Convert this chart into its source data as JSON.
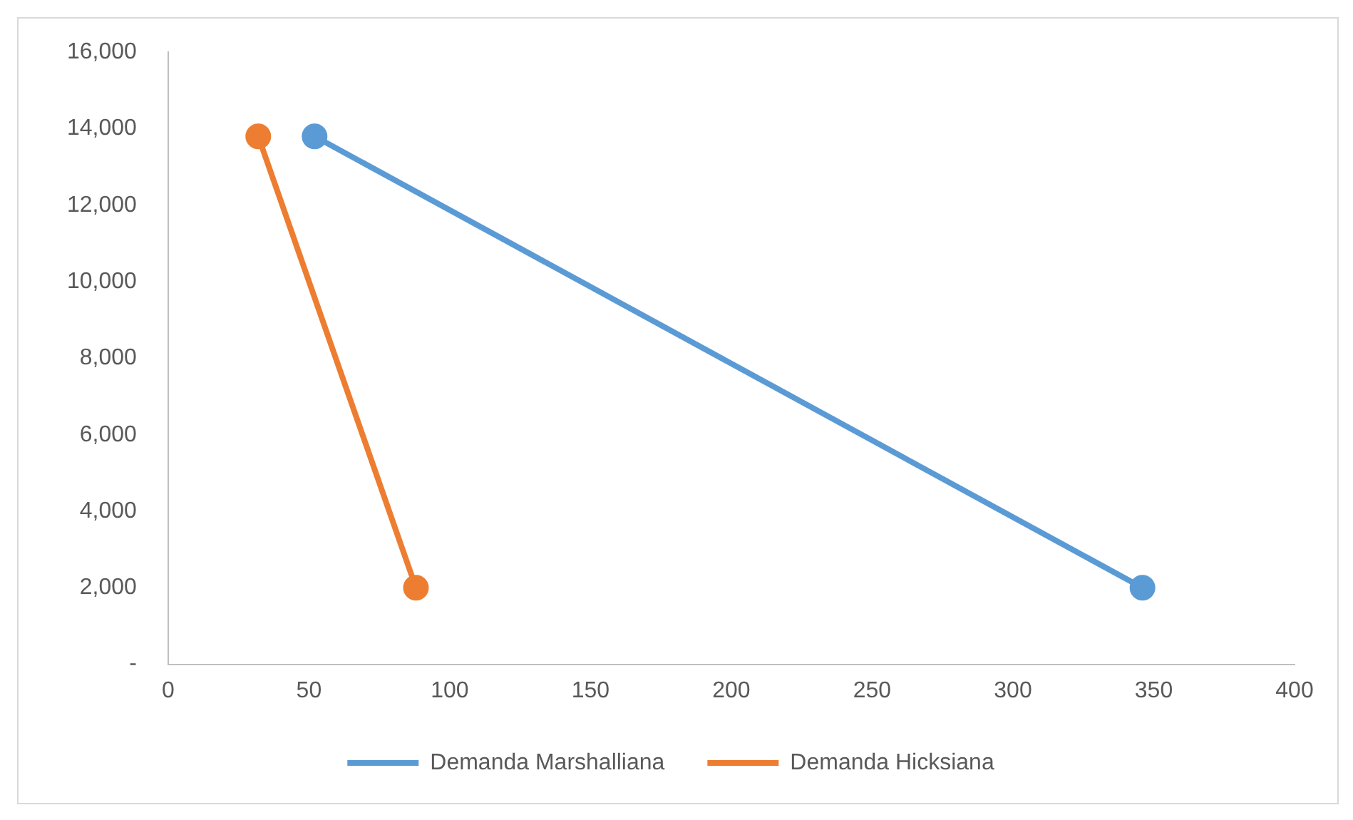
{
  "chart_data": {
    "type": "line",
    "xlim": [
      0,
      400
    ],
    "xticks": [
      0,
      50,
      100,
      150,
      200,
      250,
      300,
      350,
      400
    ],
    "ylim": [
      0,
      16000
    ],
    "yticks": [
      {
        "value": 0,
        "label": "-"
      },
      {
        "value": 2000,
        "label": "2,000"
      },
      {
        "value": 4000,
        "label": "4,000"
      },
      {
        "value": 6000,
        "label": "6,000"
      },
      {
        "value": 8000,
        "label": "8,000"
      },
      {
        "value": 10000,
        "label": "10,000"
      },
      {
        "value": 12000,
        "label": "12,000"
      },
      {
        "value": 14000,
        "label": "14,000"
      },
      {
        "value": 16000,
        "label": "16,000"
      }
    ],
    "grid": false,
    "legend": "bottom",
    "marker": "circle",
    "line_style": "solid",
    "series": [
      {
        "name": "Demanda Marshalliana",
        "color": "#5b9bd5",
        "x": [
          52,
          346
        ],
        "values": [
          13800,
          2000
        ]
      },
      {
        "name": "Demanda Hicksiana",
        "color": "#ed7d31",
        "x": [
          32,
          88
        ],
        "values": [
          13800,
          2000
        ]
      }
    ]
  }
}
